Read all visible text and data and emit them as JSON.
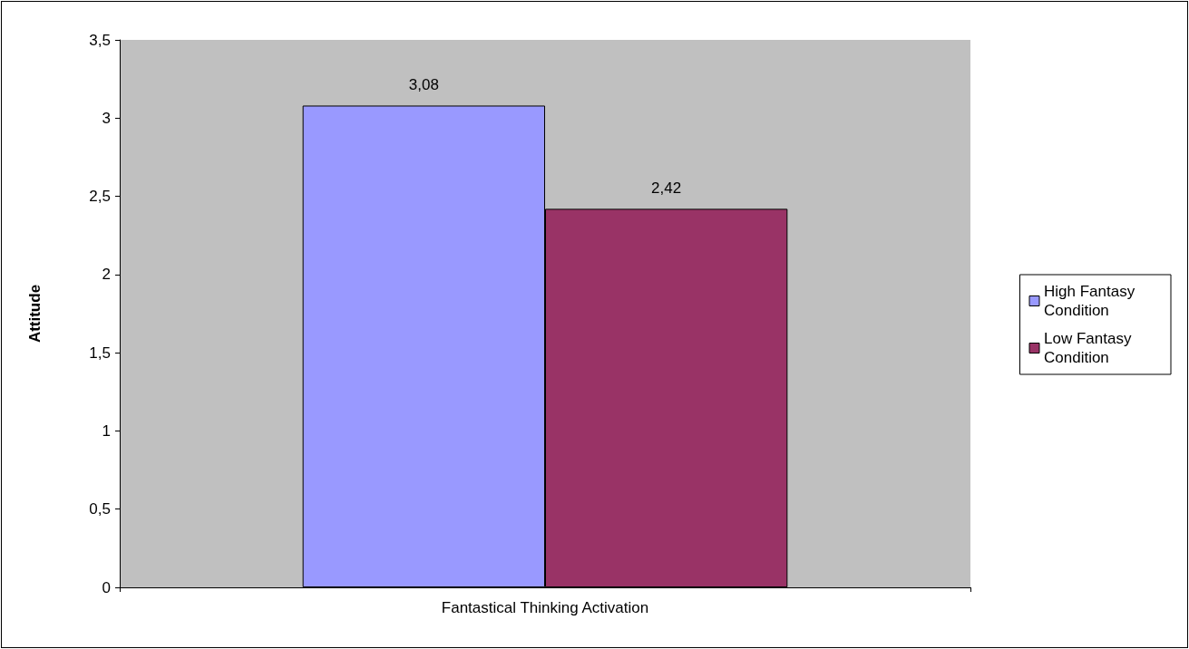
{
  "chart_data": {
    "type": "bar",
    "categories": [
      "Fantastical Thinking Activation"
    ],
    "ylabel": "Attitude",
    "series": [
      {
        "name": "High Fantasy Condition",
        "color": "#9999ff",
        "values": [
          3.08
        ],
        "value_labels": [
          "3,08"
        ]
      },
      {
        "name": "Low Fantasy Condition",
        "color": "#993366",
        "values": [
          2.42
        ],
        "value_labels": [
          "2,42"
        ]
      }
    ],
    "ylim": [
      0,
      3.5
    ],
    "yticks": [
      0,
      {
        "value": 0.5,
        "label": "0,5"
      },
      1,
      {
        "value": 1.5,
        "label": "1,5"
      },
      2,
      {
        "value": 2.5,
        "label": "2,5"
      },
      3,
      {
        "value": 3.5,
        "label": "3,5"
      }
    ],
    "grid": false,
    "legend": "right"
  }
}
